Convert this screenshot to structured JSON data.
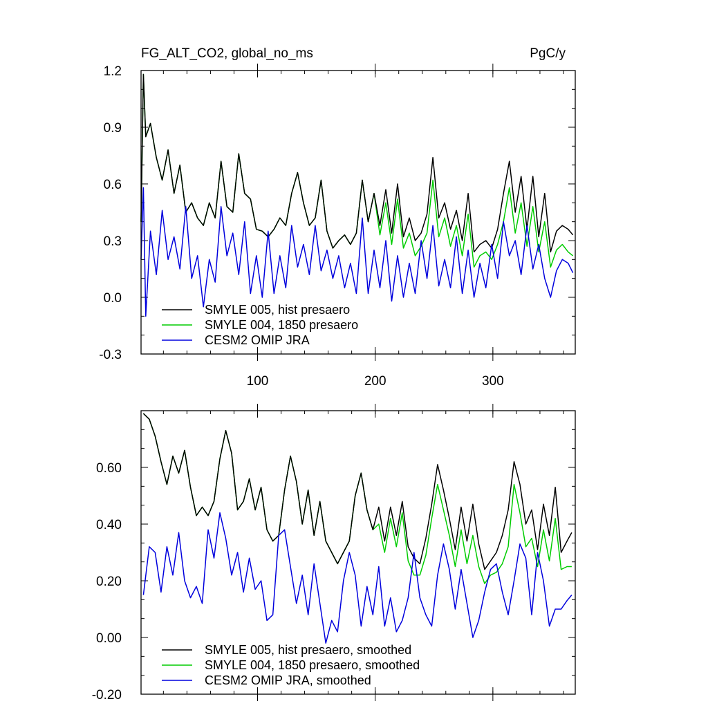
{
  "chart_data": [
    {
      "type": "line",
      "title": "FG_ALT_CO2, global_no_ms",
      "units": "PgC/y",
      "xlabel": "",
      "ylabel": "",
      "xlim": [
        1,
        370
      ],
      "ylim": [
        -0.3,
        1.2
      ],
      "x_ticks": [
        100,
        200,
        300
      ],
      "x_tick_labels": [
        "100",
        "200",
        "300"
      ],
      "y_ticks": [
        -0.3,
        0.0,
        0.3,
        0.6,
        0.9,
        1.2
      ],
      "y_tick_labels": [
        "-0.3",
        "0.0",
        "0.3",
        "0.6",
        "0.9",
        "1.2"
      ],
      "grid": false,
      "legend_position": "bottom-left",
      "series": [
        {
          "name": "SMYLE 005, hist presaero",
          "color": "#000000",
          "x": [
            1,
            3,
            5,
            9,
            14,
            19,
            24,
            29,
            34,
            39,
            44,
            49,
            54,
            59,
            64,
            69,
            74,
            79,
            84,
            89,
            94,
            99,
            104,
            109,
            114,
            119,
            124,
            129,
            134,
            139,
            144,
            149,
            154,
            159,
            164,
            169,
            174,
            179,
            184,
            189,
            194,
            199,
            204,
            209,
            214,
            219,
            224,
            229,
            234,
            239,
            244,
            249,
            254,
            259,
            264,
            269,
            274,
            279,
            284,
            289,
            294,
            299,
            304,
            309,
            314,
            319,
            324,
            329,
            334,
            339,
            344,
            349,
            354,
            359,
            364,
            368
          ],
          "values": [
            0.4,
            1.18,
            0.85,
            0.92,
            0.74,
            0.62,
            0.78,
            0.55,
            0.7,
            0.45,
            0.5,
            0.42,
            0.38,
            0.5,
            0.42,
            0.72,
            0.48,
            0.45,
            0.76,
            0.55,
            0.52,
            0.36,
            0.35,
            0.32,
            0.36,
            0.42,
            0.38,
            0.55,
            0.66,
            0.5,
            0.38,
            0.42,
            0.62,
            0.35,
            0.26,
            0.3,
            0.33,
            0.28,
            0.34,
            0.62,
            0.4,
            0.55,
            0.38,
            0.57,
            0.34,
            0.6,
            0.32,
            0.42,
            0.3,
            0.34,
            0.44,
            0.74,
            0.42,
            0.5,
            0.36,
            0.46,
            0.3,
            0.55,
            0.24,
            0.28,
            0.3,
            0.26,
            0.36,
            0.55,
            0.72,
            0.45,
            0.64,
            0.36,
            0.64,
            0.32,
            0.55,
            0.24,
            0.35,
            0.38,
            0.36,
            0.33
          ]
        },
        {
          "name": "SMYLE 004, 1850 presaero",
          "color": "#00cc00",
          "x": [
            1,
            3,
            5,
            9,
            14,
            19,
            24,
            29,
            34,
            39,
            44,
            49,
            54,
            59,
            64,
            69,
            74,
            79,
            84,
            89,
            94,
            99,
            104,
            109,
            114,
            119,
            124,
            129,
            134,
            139,
            144,
            149,
            154,
            159,
            164,
            169,
            174,
            179,
            184,
            189,
            194,
            199,
            204,
            209,
            214,
            219,
            224,
            229,
            234,
            239,
            244,
            249,
            254,
            259,
            264,
            269,
            274,
            279,
            284,
            289,
            294,
            299,
            304,
            309,
            314,
            319,
            324,
            329,
            334,
            339,
            344,
            349,
            354,
            359,
            364,
            368
          ],
          "values": [
            0.4,
            1.18,
            0.85,
            0.92,
            0.74,
            0.62,
            0.78,
            0.55,
            0.7,
            0.45,
            0.5,
            0.42,
            0.38,
            0.5,
            0.42,
            0.72,
            0.48,
            0.45,
            0.76,
            0.55,
            0.52,
            0.36,
            0.35,
            0.32,
            0.36,
            0.42,
            0.38,
            0.55,
            0.66,
            0.5,
            0.38,
            0.42,
            0.62,
            0.35,
            0.26,
            0.3,
            0.33,
            0.28,
            0.34,
            0.62,
            0.4,
            0.55,
            0.33,
            0.5,
            0.28,
            0.52,
            0.26,
            0.34,
            0.22,
            0.27,
            0.34,
            0.62,
            0.32,
            0.42,
            0.27,
            0.38,
            0.22,
            0.44,
            0.16,
            0.22,
            0.24,
            0.2,
            0.28,
            0.4,
            0.58,
            0.34,
            0.5,
            0.27,
            0.48,
            0.24,
            0.4,
            0.16,
            0.25,
            0.28,
            0.24,
            0.22
          ]
        },
        {
          "name": "CESM2 OMIP JRA",
          "color": "#0000dd",
          "x": [
            1,
            3,
            5,
            9,
            14,
            19,
            24,
            29,
            34,
            39,
            44,
            49,
            54,
            59,
            64,
            69,
            74,
            79,
            84,
            89,
            94,
            99,
            104,
            109,
            114,
            119,
            124,
            129,
            134,
            139,
            144,
            149,
            154,
            159,
            164,
            169,
            174,
            179,
            184,
            189,
            194,
            199,
            204,
            209,
            214,
            219,
            224,
            229,
            234,
            239,
            244,
            249,
            254,
            259,
            264,
            269,
            274,
            279,
            284,
            289,
            294,
            299,
            304,
            309,
            314,
            319,
            324,
            329,
            334,
            339,
            344,
            349,
            354,
            359,
            364,
            368
          ],
          "values": [
            0.2,
            0.58,
            -0.1,
            0.35,
            0.12,
            0.46,
            0.2,
            0.32,
            0.15,
            0.48,
            0.1,
            0.22,
            -0.05,
            0.2,
            0.08,
            0.48,
            0.22,
            0.34,
            0.12,
            0.4,
            0.02,
            0.22,
            0.0,
            0.35,
            0.02,
            0.22,
            0.05,
            0.38,
            0.16,
            0.28,
            0.12,
            0.38,
            0.14,
            0.25,
            0.1,
            0.22,
            0.05,
            0.18,
            0.02,
            0.42,
            0.02,
            0.25,
            0.05,
            0.3,
            -0.02,
            0.22,
            0.0,
            0.18,
            0.02,
            0.3,
            0.1,
            0.38,
            0.06,
            0.2,
            0.05,
            0.32,
            0.02,
            0.25,
            0.0,
            0.18,
            0.05,
            0.28,
            0.1,
            0.4,
            0.22,
            0.3,
            0.12,
            0.38,
            0.15,
            0.28,
            0.1,
            0.0,
            0.14,
            0.2,
            0.18,
            0.13
          ]
        }
      ]
    },
    {
      "type": "line",
      "title": "",
      "xlabel": "",
      "ylabel": "",
      "xlim": [
        1,
        370
      ],
      "ylim": [
        -0.2,
        0.8
      ],
      "x_ticks": [
        100,
        200,
        300
      ],
      "x_tick_labels": [
        "",
        "",
        ""
      ],
      "y_ticks": [
        -0.2,
        0.0,
        0.2,
        0.4,
        0.6
      ],
      "y_tick_labels": [
        "-0.20",
        "0.00",
        "0.20",
        "0.40",
        "0.60"
      ],
      "grid": false,
      "legend_position": "bottom-left",
      "series": [
        {
          "name": "SMYLE 005, hist presaero, smoothed",
          "color": "#000000",
          "x": [
            3,
            8,
            13,
            18,
            23,
            28,
            33,
            38,
            43,
            48,
            53,
            58,
            63,
            68,
            73,
            78,
            83,
            88,
            93,
            98,
            103,
            108,
            113,
            118,
            123,
            128,
            133,
            138,
            143,
            148,
            153,
            158,
            163,
            168,
            173,
            178,
            183,
            188,
            193,
            198,
            203,
            208,
            213,
            218,
            223,
            228,
            233,
            238,
            243,
            248,
            253,
            258,
            263,
            268,
            273,
            278,
            283,
            288,
            293,
            298,
            303,
            308,
            313,
            318,
            323,
            328,
            333,
            338,
            343,
            348,
            353,
            358,
            363,
            367
          ],
          "values": [
            0.79,
            0.77,
            0.71,
            0.62,
            0.54,
            0.64,
            0.58,
            0.66,
            0.53,
            0.43,
            0.46,
            0.43,
            0.48,
            0.63,
            0.73,
            0.65,
            0.45,
            0.48,
            0.56,
            0.45,
            0.53,
            0.38,
            0.34,
            0.36,
            0.52,
            0.64,
            0.55,
            0.4,
            0.52,
            0.36,
            0.48,
            0.34,
            0.3,
            0.26,
            0.3,
            0.34,
            0.5,
            0.58,
            0.45,
            0.38,
            0.46,
            0.34,
            0.46,
            0.36,
            0.48,
            0.32,
            0.28,
            0.26,
            0.35,
            0.47,
            0.61,
            0.52,
            0.42,
            0.31,
            0.46,
            0.34,
            0.47,
            0.33,
            0.24,
            0.27,
            0.3,
            0.36,
            0.45,
            0.62,
            0.54,
            0.4,
            0.45,
            0.31,
            0.47,
            0.36,
            0.53,
            0.3,
            0.34,
            0.37
          ]
        },
        {
          "name": "SMYLE 004, 1850 presaero, smoothed",
          "color": "#00cc00",
          "x": [
            3,
            8,
            13,
            18,
            23,
            28,
            33,
            38,
            43,
            48,
            53,
            58,
            63,
            68,
            73,
            78,
            83,
            88,
            93,
            98,
            103,
            108,
            113,
            118,
            123,
            128,
            133,
            138,
            143,
            148,
            153,
            158,
            163,
            168,
            173,
            178,
            183,
            188,
            193,
            198,
            203,
            208,
            213,
            218,
            223,
            228,
            233,
            238,
            243,
            248,
            253,
            258,
            263,
            268,
            273,
            278,
            283,
            288,
            293,
            298,
            303,
            308,
            313,
            318,
            323,
            328,
            333,
            338,
            343,
            348,
            353,
            358,
            363,
            367
          ],
          "values": [
            0.79,
            0.77,
            0.71,
            0.62,
            0.54,
            0.64,
            0.58,
            0.66,
            0.53,
            0.43,
            0.46,
            0.43,
            0.48,
            0.63,
            0.73,
            0.65,
            0.45,
            0.48,
            0.56,
            0.45,
            0.53,
            0.38,
            0.34,
            0.36,
            0.52,
            0.64,
            0.55,
            0.4,
            0.52,
            0.36,
            0.48,
            0.34,
            0.3,
            0.26,
            0.3,
            0.34,
            0.5,
            0.58,
            0.45,
            0.38,
            0.4,
            0.3,
            0.42,
            0.32,
            0.44,
            0.27,
            0.22,
            0.22,
            0.29,
            0.42,
            0.54,
            0.45,
            0.36,
            0.25,
            0.38,
            0.26,
            0.36,
            0.25,
            0.19,
            0.22,
            0.23,
            0.26,
            0.32,
            0.54,
            0.44,
            0.32,
            0.35,
            0.25,
            0.38,
            0.27,
            0.42,
            0.24,
            0.25,
            0.25
          ]
        },
        {
          "name": "CESM2 OMIP JRA, smoothed",
          "color": "#0000dd",
          "x": [
            3,
            8,
            13,
            18,
            23,
            28,
            33,
            38,
            43,
            48,
            53,
            58,
            63,
            68,
            73,
            78,
            83,
            88,
            93,
            98,
            103,
            108,
            113,
            118,
            123,
            128,
            133,
            138,
            143,
            148,
            153,
            158,
            163,
            168,
            173,
            178,
            183,
            188,
            193,
            198,
            203,
            208,
            213,
            218,
            223,
            228,
            233,
            238,
            243,
            248,
            253,
            258,
            263,
            268,
            273,
            278,
            283,
            288,
            293,
            298,
            303,
            308,
            313,
            318,
            323,
            328,
            333,
            338,
            343,
            348,
            353,
            358,
            363,
            367
          ],
          "values": [
            0.15,
            0.32,
            0.3,
            0.16,
            0.32,
            0.22,
            0.37,
            0.2,
            0.14,
            0.18,
            0.12,
            0.38,
            0.28,
            0.44,
            0.35,
            0.22,
            0.3,
            0.16,
            0.28,
            0.17,
            0.2,
            0.06,
            0.08,
            0.36,
            0.38,
            0.25,
            0.12,
            0.22,
            0.08,
            0.26,
            0.12,
            -0.02,
            0.06,
            0.02,
            0.2,
            0.3,
            0.22,
            0.04,
            0.18,
            0.08,
            0.25,
            0.04,
            0.14,
            0.02,
            0.06,
            0.14,
            0.3,
            0.14,
            0.08,
            0.04,
            0.22,
            0.33,
            0.24,
            0.1,
            0.24,
            0.12,
            0.0,
            0.06,
            0.16,
            0.24,
            0.26,
            0.16,
            0.08,
            0.2,
            0.33,
            0.28,
            0.08,
            0.3,
            0.2,
            0.04,
            0.1,
            0.1,
            0.13,
            0.15
          ]
        }
      ]
    }
  ]
}
